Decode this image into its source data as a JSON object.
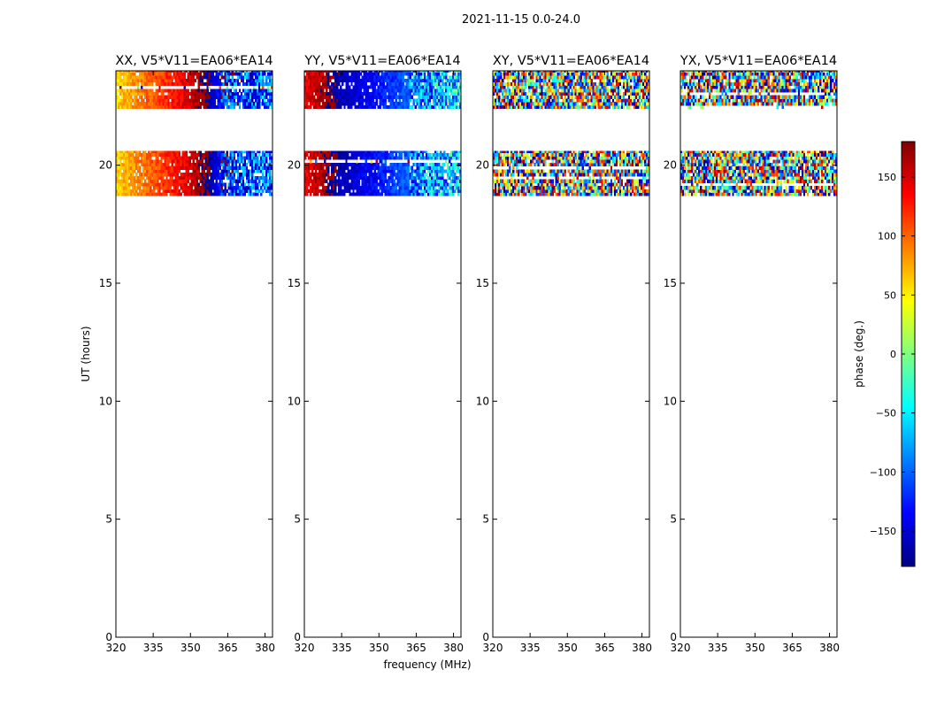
{
  "figure": {
    "suptitle": "2021-11-15 0.0-24.0"
  },
  "chart_data": [
    {
      "type": "heatmap",
      "title": "XX, V5*V11=EA06*EA14",
      "xlabel": "",
      "ylabel": "UT (hours)",
      "xlim": [
        320,
        383
      ],
      "ylim": [
        0,
        24
      ],
      "xticks": [
        320,
        335,
        350,
        365,
        380
      ],
      "yticks": [
        0,
        5,
        10,
        15,
        20
      ],
      "data_time_ranges": [
        [
          18.7,
          20.6
        ],
        [
          22.4,
          24.0
        ]
      ],
      "phase_pattern": "smooth",
      "phase_by_frequency": [
        [
          320,
          60
        ],
        [
          335,
          105
        ],
        [
          350,
          150
        ],
        [
          358,
          -170
        ],
        [
          362,
          -130
        ],
        [
          383,
          -95
        ]
      ]
    },
    {
      "type": "heatmap",
      "title": "YY, V5*V11=EA06*EA14",
      "xlabel": "frequency (MHz)",
      "ylabel": "",
      "xlim": [
        320,
        383
      ],
      "ylim": [
        0,
        24
      ],
      "xticks": [
        320,
        335,
        350,
        365,
        380
      ],
      "yticks": [
        0,
        5,
        10,
        15,
        20
      ],
      "data_time_ranges": [
        [
          18.7,
          20.6
        ],
        [
          22.4,
          24.0
        ]
      ],
      "phase_pattern": "smooth",
      "phase_by_frequency": [
        [
          320,
          140
        ],
        [
          330,
          175
        ],
        [
          335,
          -160
        ],
        [
          350,
          -130
        ],
        [
          362,
          -100
        ],
        [
          383,
          -55
        ]
      ]
    },
    {
      "type": "heatmap",
      "title": "XY, V5*V11=EA06*EA14",
      "xlabel": "",
      "ylabel": "",
      "xlim": [
        320,
        383
      ],
      "ylim": [
        0,
        24
      ],
      "xticks": [
        320,
        335,
        350,
        365,
        380
      ],
      "yticks": [
        0,
        5,
        10,
        15,
        20
      ],
      "data_time_ranges": [
        [
          18.7,
          20.6
        ],
        [
          22.4,
          24.0
        ]
      ],
      "phase_pattern": "noise"
    },
    {
      "type": "heatmap",
      "title": "YX, V5*V11=EA06*EA14",
      "xlabel": "",
      "ylabel": "",
      "xlim": [
        320,
        383
      ],
      "ylim": [
        0,
        24
      ],
      "xticks": [
        320,
        335,
        350,
        365,
        380
      ],
      "yticks": [
        0,
        5,
        10,
        15,
        20
      ],
      "data_time_ranges": [
        [
          18.7,
          20.6
        ],
        [
          22.4,
          24.0
        ]
      ],
      "phase_pattern": "noise"
    }
  ],
  "colorbar": {
    "label": "phase (deg.)",
    "range": [
      -180,
      180
    ],
    "ticks": [
      -150,
      -100,
      -50,
      0,
      50,
      100,
      150
    ],
    "tick_labels": [
      "−150",
      "−100",
      "−50",
      "0",
      "50",
      "100",
      "150"
    ],
    "colormap": "jet",
    "colors": [
      "#00007f",
      "#0000ff",
      "#007fff",
      "#00ffff",
      "#7fff7f",
      "#ffff00",
      "#ff7f00",
      "#ff0000",
      "#7f0000"
    ]
  }
}
